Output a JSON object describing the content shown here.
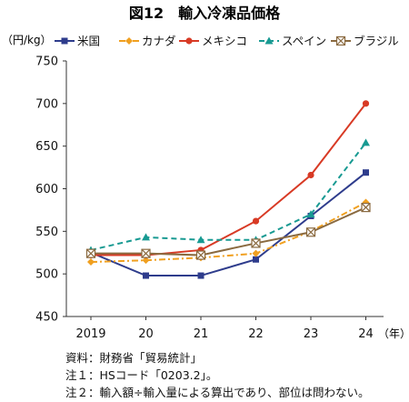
{
  "chart_data": {
    "type": "line",
    "title": "図12　輸入冷凍品価格",
    "ylabel": "（円/kg）",
    "x_unit": "（年）",
    "categories": [
      "2019",
      "20",
      "21",
      "22",
      "23",
      "24"
    ],
    "ylim": [
      450,
      750
    ],
    "yticks": [
      450,
      500,
      550,
      600,
      650,
      700,
      750
    ],
    "grid": false,
    "legend_position": "top",
    "series": [
      {
        "name": "米国",
        "color": "#2E3C8C",
        "dash": "solid",
        "marker": "square",
        "values": [
          525,
          498,
          498,
          517,
          568,
          619
        ]
      },
      {
        "name": "カナダ",
        "color": "#F0A020",
        "dash": "dashdot",
        "marker": "diamond",
        "values": [
          514,
          516,
          519,
          524,
          550,
          584
        ]
      },
      {
        "name": "メキシコ",
        "color": "#D83A25",
        "dash": "solid",
        "marker": "circle",
        "values": [
          522,
          522,
          528,
          562,
          616,
          700
        ]
      },
      {
        "name": "スペイン",
        "color": "#189A92",
        "dash": "dashed",
        "marker": "triangle",
        "values": [
          528,
          543,
          540,
          540,
          570,
          654
        ]
      },
      {
        "name": "ブラジル",
        "color": "#8A6A40",
        "dash": "solid",
        "marker": "boxx",
        "values": [
          524,
          524,
          522,
          536,
          549,
          578
        ]
      }
    ]
  },
  "notes": {
    "source": "資料：財務省「貿易統計」",
    "note1": "注１：HSコード「0203.2」。",
    "note2": "注２：輸入額÷輸入量による算出であり、部位は問わない。"
  }
}
